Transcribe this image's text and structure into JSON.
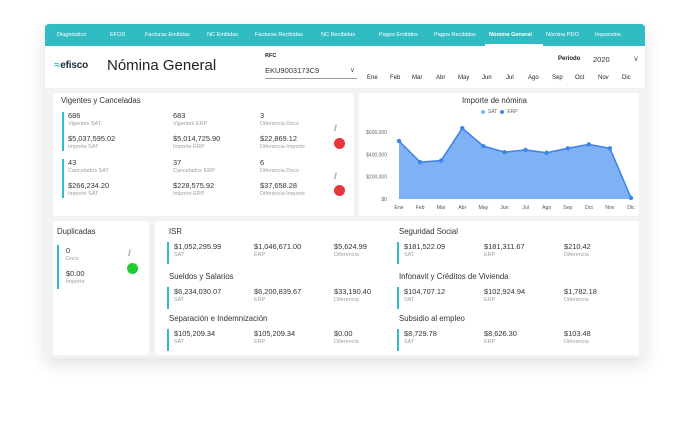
{
  "nav": {
    "items": [
      "Diagnóstico",
      "EFOS",
      "Facturas Emitidas",
      "NC Emitidas",
      "Facturas Recibidas",
      "NC Recibidas",
      "Pagos Emitidos",
      "Pagos Recibidos",
      "Nómina General",
      "Nómina PDO",
      "Impuestos"
    ],
    "active_index": 8
  },
  "header": {
    "logo": "efisco",
    "logo_mark": "≈",
    "title": "Nómina General",
    "rfc_label": "RFC",
    "rfc_value": "EKU9003173C9",
    "periodo_label": "Periodo",
    "year": "2020",
    "months": [
      "Ene",
      "Feb",
      "Mar",
      "Abr",
      "May",
      "Jun",
      "Jul",
      "Ago",
      "Sep",
      "Oct",
      "Nov",
      "Dic"
    ]
  },
  "vigentes": {
    "title": "Vigentes y Canceladas",
    "rows": [
      {
        "sat_v": "686",
        "sat_l": "Vigentes SAT",
        "erp_v": "683",
        "erp_l": "Vigentes ERP",
        "dif_v": "3",
        "dif_l": "Diferencia Docs"
      },
      {
        "sat_v": "$5,037,595.02",
        "sat_l": "Importe SAT",
        "erp_v": "$5,014,725.90",
        "erp_l": "Importe ERP",
        "dif_v": "$22,869.12",
        "dif_l": "Diferencia Importe"
      },
      {
        "sat_v": "43",
        "sat_l": "Cancelados SAT",
        "erp_v": "37",
        "erp_l": "Cancelados ERP",
        "dif_v": "6",
        "dif_l": "Diferencia Docs"
      },
      {
        "sat_v": "$266,234.20",
        "sat_l": "Importe SAT",
        "erp_v": "$228,575.92",
        "erp_l": "Importe ERP",
        "dif_v": "$37,658.28",
        "dif_l": "Diferencia Importe"
      }
    ],
    "status_colors": [
      "#e8343b",
      "#e8343b"
    ]
  },
  "duplicadas": {
    "title": "Duplicadas",
    "docs_v": "0",
    "docs_l": "Docs",
    "imp_v": "$0.00",
    "imp_l": "Importe",
    "status_color": "#22cc33"
  },
  "concepts": [
    {
      "title": "ISR",
      "sat_v": "$1,052,295.99",
      "sat_l": "SAT",
      "erp_v": "$1,046,671.00",
      "erp_l": "ERP",
      "dif_v": "$5,624.99",
      "dif_l": "Diferencia"
    },
    {
      "title": "Sueldos y Salarios",
      "sat_v": "$6,234,030.07",
      "sat_l": "SAT",
      "erp_v": "$6,200,839.67",
      "erp_l": "ERP",
      "dif_v": "$33,190.40",
      "dif_l": "Diferencia"
    },
    {
      "title": "Separación e Indemnización",
      "sat_v": "$105,209.34",
      "sat_l": "SAT",
      "erp_v": "$105,209.34",
      "erp_l": "ERP",
      "dif_v": "$0.00",
      "dif_l": "Diferencia"
    },
    {
      "title": "Seguridad Social",
      "sat_v": "$181,522.09",
      "sat_l": "SAT",
      "erp_v": "$181,311.67",
      "erp_l": "ERP",
      "dif_v": "$210.42",
      "dif_l": "Diferencia"
    },
    {
      "title": "Infonavit y Créditos de Vivienda",
      "sat_v": "$104,707.12",
      "sat_l": "SAT",
      "erp_v": "$102,924.94",
      "erp_l": "ERP",
      "dif_v": "$1,782.18",
      "dif_l": "Diferencia"
    },
    {
      "title": "Subsidio al empleo",
      "sat_v": "$8,729.78",
      "sat_l": "SAT",
      "erp_v": "$8,626.30",
      "erp_l": "ERP",
      "dif_v": "$103.48",
      "dif_l": "Diferencia"
    }
  ],
  "colors": {
    "accent": "#31bcc4",
    "chart_fill": "#7fb2f5",
    "chart_line": "#3f86e8",
    "sat": "#7fb2f5",
    "erp": "#3f86e8"
  },
  "chart_data": {
    "type": "area",
    "title": "Importe de nómina",
    "legend": [
      "SAT",
      "ERP"
    ],
    "categories": [
      "Ene",
      "Feb",
      "Mar",
      "Abr",
      "May",
      "Jun",
      "Jul",
      "Ago",
      "Sep",
      "Oct",
      "Nov",
      "Dic"
    ],
    "series": [
      {
        "name": "SAT",
        "values": [
          520000,
          330000,
          345000,
          635000,
          475000,
          420000,
          440000,
          415000,
          455000,
          490000,
          455000,
          10000
        ]
      },
      {
        "name": "ERP",
        "values": [
          520000,
          330000,
          345000,
          635000,
          475000,
          420000,
          440000,
          415000,
          455000,
          490000,
          455000,
          10000
        ]
      }
    ],
    "yticks": [
      "$0",
      "$200,000",
      "$400,000",
      "$600,000"
    ],
    "ylim": [
      0,
      700000
    ],
    "legend_position": "top-center"
  }
}
